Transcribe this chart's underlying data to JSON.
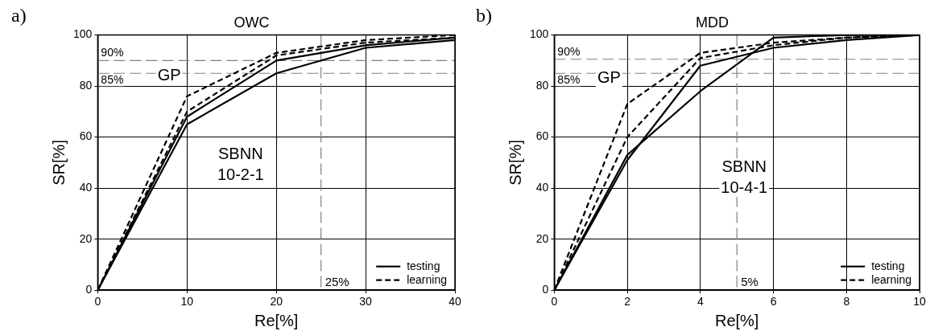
{
  "chart_data": [
    {
      "type": "line",
      "title": "OWC",
      "xlabel": "Re[%]",
      "ylabel": "SR[%]",
      "x": [
        0,
        10,
        20,
        30,
        40
      ],
      "series": [
        {
          "name": "testing",
          "color": "#000000",
          "line_style": "solid",
          "values": [
            0,
            68,
            90,
            96,
            99
          ]
        },
        {
          "color": "#000000",
          "line_style": "solid",
          "values": [
            0,
            65,
            85,
            95,
            98
          ]
        },
        {
          "name": "learning",
          "color": "#000000",
          "line_style": "dashed",
          "values": [
            0,
            76,
            93,
            98,
            100
          ]
        },
        {
          "color": "#000000",
          "line_style": "dashed",
          "values": [
            0,
            70,
            92,
            97,
            99
          ]
        }
      ],
      "xlim": [
        0,
        40
      ],
      "xticks": [
        0,
        10,
        20,
        30,
        40
      ],
      "ylim": [
        0,
        100
      ],
      "yticks": [
        0,
        20,
        40,
        60,
        80,
        100
      ],
      "grid": true,
      "legend": "bottom right",
      "marker": "none",
      "ref_lines": [
        {
          "axis": "y",
          "value": 90,
          "label": "90%",
          "color": "#808080",
          "line_style": "dashed"
        },
        {
          "axis": "y",
          "value": 85,
          "label": "85%",
          "color": "#808080",
          "line_style": "dashed"
        },
        {
          "axis": "x",
          "value": 25,
          "label": "25%",
          "color": "#808080",
          "line_style": "dashed"
        }
      ],
      "annotations": [
        "a)",
        "GP",
        "SBNN",
        "10-2-1"
      ]
    },
    {
      "type": "line",
      "title": "MDD",
      "xlabel": "Re[%]",
      "ylabel": "SR[%]",
      "x": [
        0,
        2,
        4,
        6,
        8,
        10
      ],
      "series": [
        {
          "name": "testing",
          "color": "#000000",
          "line_style": "solid",
          "values": [
            0,
            51,
            88,
            95,
            98,
            100
          ]
        },
        {
          "color": "#000000",
          "line_style": "solid",
          "values": [
            0,
            53,
            78,
            99,
            100,
            100
          ]
        },
        {
          "name": "learning",
          "color": "#000000",
          "line_style": "dashed",
          "values": [
            0,
            73,
            93,
            97,
            99,
            100
          ]
        },
        {
          "color": "#000000",
          "line_style": "dashed",
          "values": [
            0,
            60,
            91,
            96,
            99,
            100
          ]
        }
      ],
      "xlim": [
        0,
        10
      ],
      "xticks": [
        0,
        2,
        4,
        6,
        8,
        10
      ],
      "ylim": [
        0,
        100
      ],
      "yticks": [
        0,
        20,
        40,
        60,
        80,
        100
      ],
      "grid": true,
      "legend": "bottom right",
      "marker": "none",
      "ref_lines": [
        {
          "axis": "y",
          "value": 90.5,
          "label": "90%",
          "color": "#808080",
          "line_style": "dashed"
        },
        {
          "axis": "y",
          "value": 85,
          "label": "85%",
          "color": "#808080",
          "line_style": "dashed"
        },
        {
          "axis": "x",
          "value": 5,
          "label": "5%",
          "color": "#808080",
          "line_style": "dashed"
        }
      ],
      "annotations": [
        "b)",
        "GP",
        "SBNN",
        "10-4-1"
      ]
    }
  ]
}
